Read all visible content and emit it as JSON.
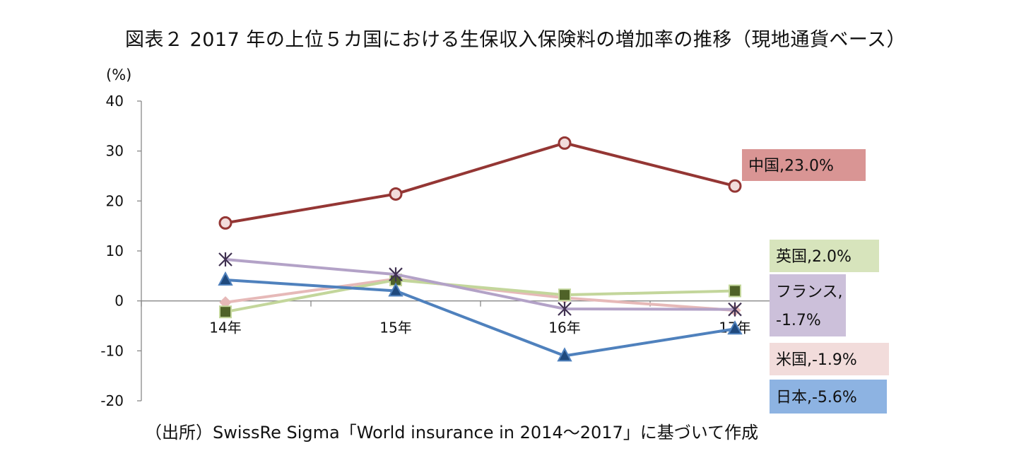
{
  "title": "図表２ 2017 年の上位５カ国における生保収入保険料の増加率の推移（現地通貨ベース）",
  "source": "（出所）SwissRe Sigma「World insurance in 2014～2017」に基づいて作成",
  "chart_data": {
    "type": "line",
    "unit_label": "(%)",
    "categories": [
      "14年",
      "15年",
      "16年",
      "17年"
    ],
    "ylim": [
      -20,
      40
    ],
    "yticks": [
      40,
      30,
      20,
      10,
      0,
      -10,
      -20
    ],
    "grid": false,
    "series": [
      {
        "name": "中国",
        "values": [
          15.6,
          21.4,
          31.6,
          23.0
        ],
        "color": "#943634",
        "marker": "circle",
        "label": "中国,23.0%",
        "label_lines": [
          "中国,23.0%"
        ],
        "label_bg": "#d99594"
      },
      {
        "name": "フランス",
        "values": [
          8.3,
          5.3,
          -1.6,
          -1.7
        ],
        "color": "#b3a2c7",
        "marker": "star",
        "label": "フランス,-1.7%",
        "label_lines": [
          "フランス,",
          "-1.7%"
        ],
        "label_bg": "#ccc0da"
      },
      {
        "name": "米国",
        "values": [
          -0.3,
          4.4,
          0.6,
          -1.9
        ],
        "color": "#e6b9b8",
        "marker": "diamond",
        "label": "米国,-1.9%",
        "label_lines": [
          "米国,-1.9%"
        ],
        "label_bg": "#f2dcdb"
      },
      {
        "name": "英国",
        "values": [
          -2.2,
          4.2,
          1.2,
          2.0
        ],
        "color": "#c3d69b",
        "marker": "square",
        "label": "英国,2.0%",
        "label_lines": [
          "英国,2.0%"
        ],
        "label_bg": "#d7e4bc"
      },
      {
        "name": "日本",
        "values": [
          4.2,
          2.0,
          -11.0,
          -5.6
        ],
        "color": "#4f81bd",
        "marker": "triangle",
        "label": "日本,-5.6%",
        "label_lines": [
          "日本,-5.6%"
        ],
        "label_bg": "#8db3e2"
      }
    ]
  }
}
